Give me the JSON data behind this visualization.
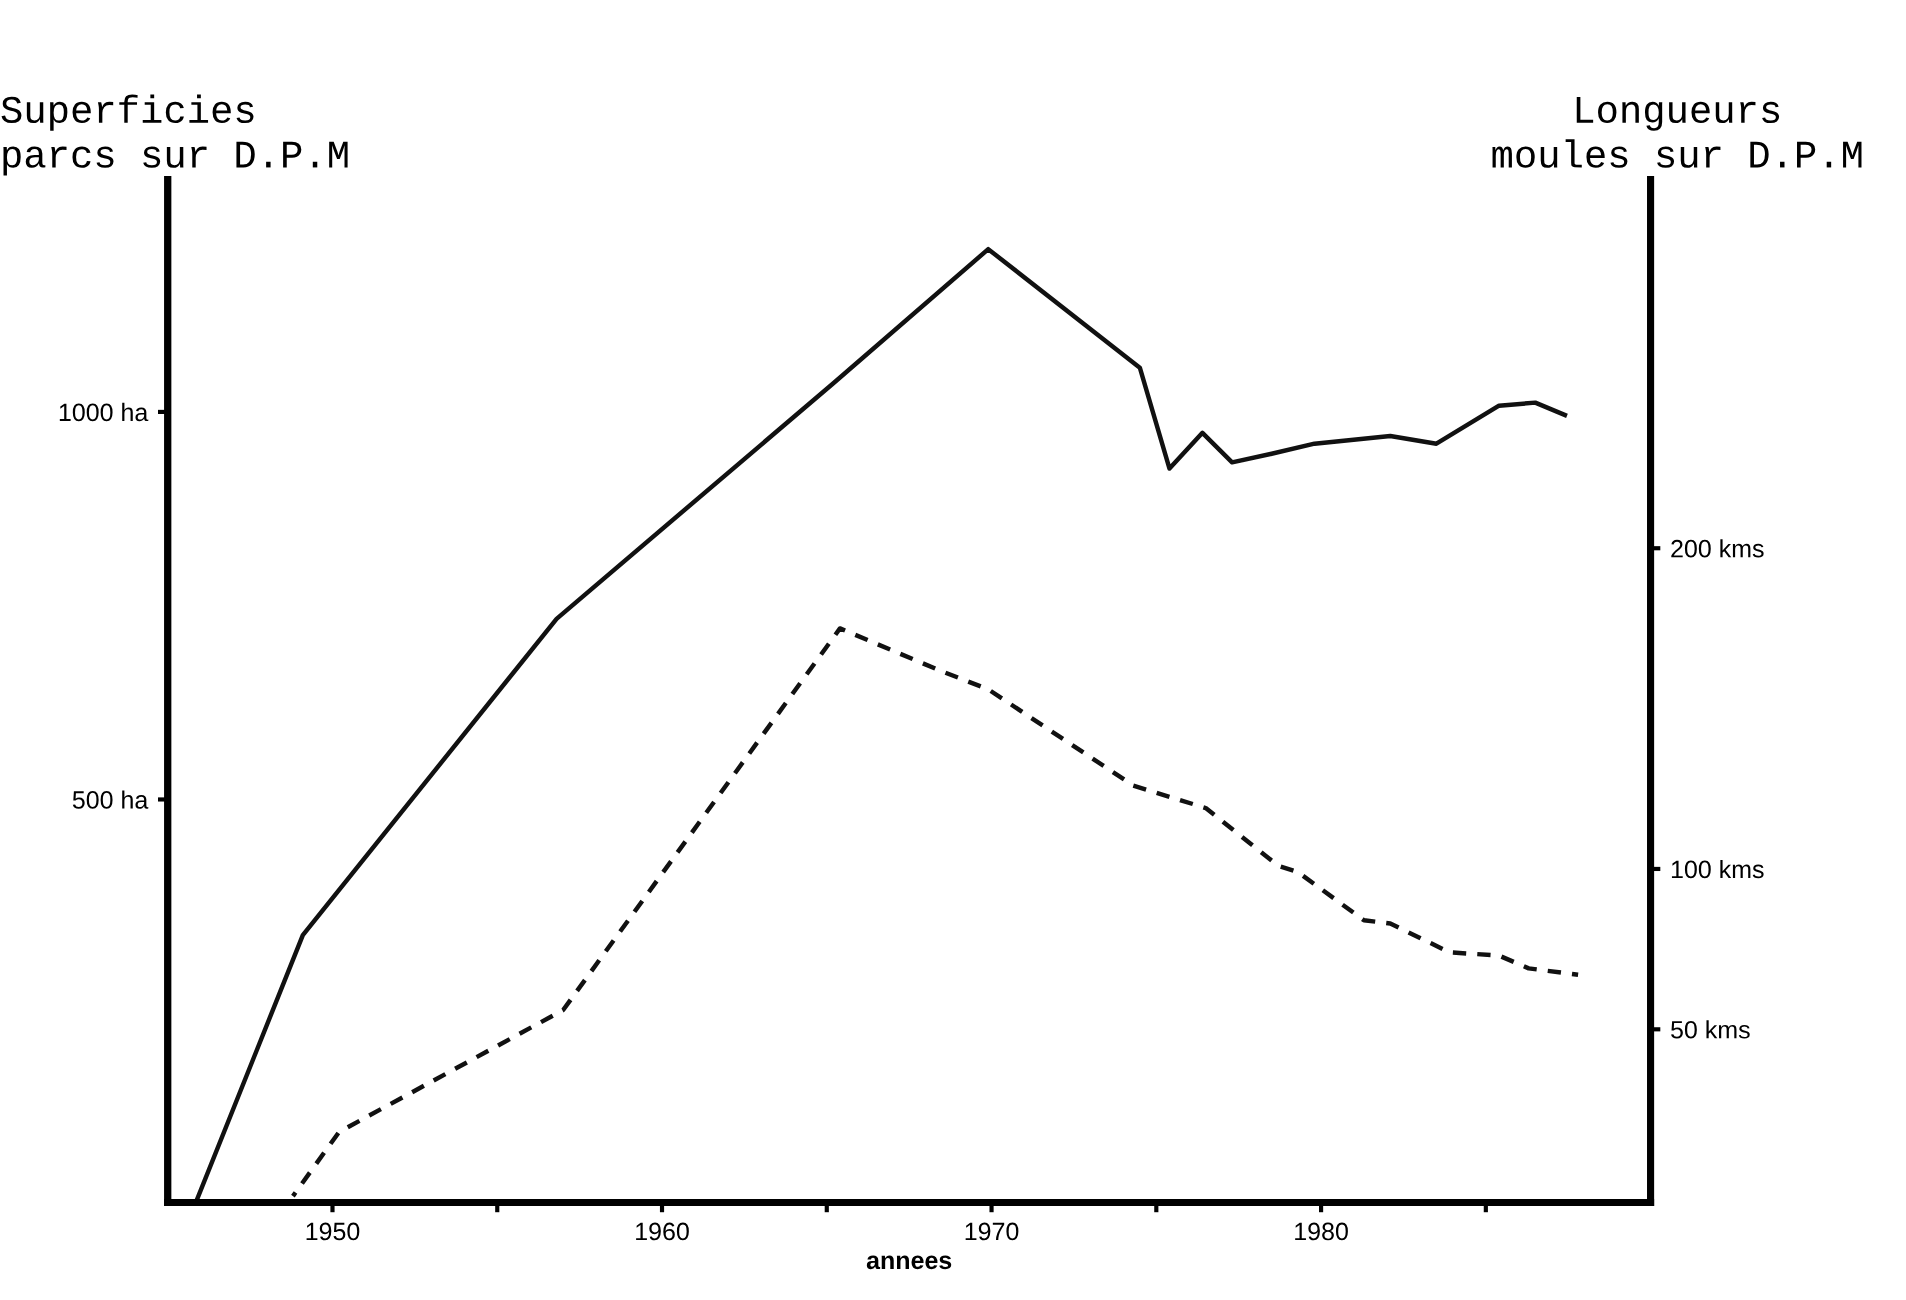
{
  "chart_data": {
    "type": "line",
    "ylabel": "Superficies\nparcs sur D.P.M",
    "y2label": "Longueurs\nmoules sur D.P.M",
    "xlabel": "annees",
    "xlim": [
      1945,
      1990
    ],
    "xticks": [
      1950,
      {
        "value": 1955,
        "label": null
      },
      1960,
      {
        "value": 1965,
        "label": null
      },
      1970,
      {
        "value": 1975,
        "label": null
      },
      1980,
      {
        "value": 1985,
        "label": null
      }
    ],
    "ylim": [
      -20,
      1300
    ],
    "yticks": [
      {
        "value": 500,
        "label": "500 ha"
      },
      {
        "value": 1000,
        "label": "1000 ha"
      }
    ],
    "y2lim": [
      -4,
      315
    ],
    "y2ticks": [
      {
        "value": 50,
        "label": "50 kms"
      },
      {
        "value": 100,
        "label": "100 kms"
      },
      {
        "value": 200,
        "label": "200 kms"
      }
    ],
    "grid": false,
    "marker": "none",
    "series": [
      {
        "color": "#111111",
        "line_style": "solid",
        "x": [
          1945.9,
          1949.1,
          1956.8,
          1965.2,
          1969.9,
          1974.5,
          1975.4,
          1976.4,
          1977.3,
          1978.5,
          1979.8,
          1982.1,
          1983.5,
          1985.4,
          1986.5,
          1987.4
        ],
        "values": [
          -15,
          325,
          733,
          1037,
          1210,
          1057,
          927,
          973,
          935,
          946,
          959,
          969,
          959,
          1008,
          1012,
          996
        ]
      },
      {
        "color": "#111111",
        "line_style": "dashed",
        "axis": "y2",
        "x": [
          1948.8,
          1950.2,
          1957.0,
          1965.4,
          1968.4,
          1969.9,
          1974.3,
          1976.5,
          1978.7,
          1979.3,
          1981.3,
          1982.1,
          1983.9,
          1985.4,
          1986.3,
          1987.8
        ],
        "values": [
          -2,
          18,
          56,
          175,
          162,
          156,
          126,
          119,
          101,
          99,
          84,
          83,
          74,
          73,
          69,
          67
        ]
      }
    ]
  }
}
